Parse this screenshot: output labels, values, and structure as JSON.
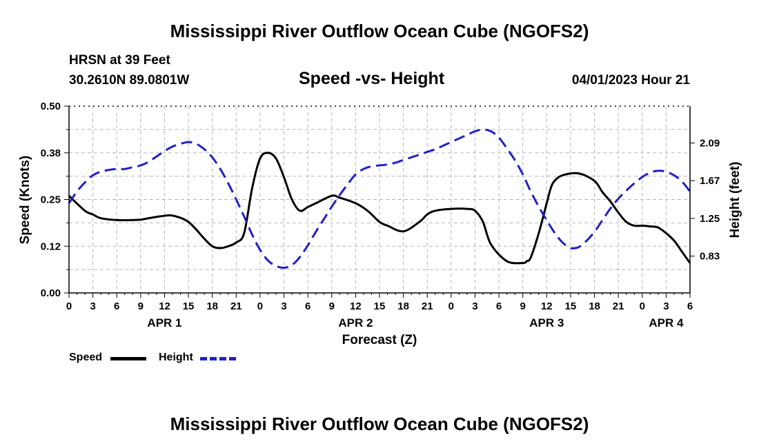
{
  "page": {
    "title_top": "Mississippi River Outflow Ocean Cube (NGOFS2)",
    "title_bottom": "Mississippi River Outflow Ocean Cube (NGOFS2)",
    "station": "HRSN at 39 Feet",
    "coords": "30.2610N  89.0801W",
    "subtitle": "Speed -vs- Height",
    "datetime": "04/01/2023 Hour 21"
  },
  "legend": {
    "speed_label": "Speed",
    "height_label": "Height"
  },
  "colors": {
    "speed": "#000000",
    "height": "#1f1fcc",
    "grid": "#b5b5b5"
  },
  "chart_data": {
    "type": "line",
    "xlabel": "Forecast (Z)",
    "ylabel_left": "Speed (Knots)",
    "ylabel_right": "Height (feet)",
    "x_range_hours": [
      0,
      78
    ],
    "x_tick_labels": [
      "0",
      "3",
      "6",
      "9",
      "12",
      "15",
      "18",
      "21",
      "0",
      "3",
      "6",
      "9",
      "12",
      "15",
      "18",
      "21",
      "0",
      "3",
      "6",
      "9",
      "12",
      "15",
      "18",
      "21",
      "0",
      "3",
      "6"
    ],
    "day_labels": [
      {
        "label": "APR 1",
        "hour": 12
      },
      {
        "label": "APR 2",
        "hour": 36
      },
      {
        "label": "APR 3",
        "hour": 60
      },
      {
        "label": "APR 4",
        "hour": 75
      }
    ],
    "y_left": {
      "range": [
        0,
        0.5
      ],
      "ticks": [
        "0.00",
        "0.12",
        "0.25",
        "0.38",
        "0.50"
      ],
      "tick_values": [
        0,
        0.125,
        0.25,
        0.375,
        0.5
      ]
    },
    "y_right": {
      "range": [
        0.42,
        2.5
      ],
      "ticks": [
        "0.83",
        "1.25",
        "1.67",
        "2.09"
      ],
      "tick_values": [
        0.83,
        1.25,
        1.67,
        2.09
      ]
    },
    "series": [
      {
        "name": "Speed",
        "axis": "left",
        "style": "solid",
        "x": [
          0,
          2,
          3,
          4,
          6,
          8,
          9,
          10,
          11.5,
          13,
          15,
          17,
          18,
          19,
          20,
          21,
          22,
          23,
          24,
          25,
          26,
          27,
          28,
          29,
          30,
          31,
          33,
          34,
          36,
          37.5,
          39,
          40,
          42,
          44,
          45,
          46,
          48,
          50,
          51,
          52,
          53,
          55,
          57,
          57.5,
          58,
          59,
          60,
          60.5,
          61,
          62,
          64,
          66,
          67,
          68,
          69,
          70,
          71,
          72,
          73,
          74,
          75,
          76,
          77,
          78
        ],
        "y": [
          0.26,
          0.22,
          0.21,
          0.2,
          0.195,
          0.195,
          0.196,
          0.2,
          0.205,
          0.207,
          0.19,
          0.145,
          0.125,
          0.12,
          0.125,
          0.135,
          0.16,
          0.28,
          0.36,
          0.375,
          0.36,
          0.31,
          0.25,
          0.22,
          0.23,
          0.24,
          0.26,
          0.255,
          0.24,
          0.22,
          0.19,
          0.18,
          0.165,
          0.19,
          0.21,
          0.22,
          0.225,
          0.225,
          0.22,
          0.19,
          0.13,
          0.085,
          0.08,
          0.085,
          0.095,
          0.16,
          0.24,
          0.28,
          0.3,
          0.315,
          0.32,
          0.3,
          0.27,
          0.245,
          0.215,
          0.19,
          0.18,
          0.18,
          0.178,
          0.175,
          0.16,
          0.14,
          0.11,
          0.08
        ]
      },
      {
        "name": "Height",
        "axis": "right",
        "style": "dashed",
        "x": [
          0,
          1,
          2,
          3,
          4,
          5,
          6,
          7,
          8,
          9,
          10,
          11,
          12,
          13,
          14,
          15,
          16,
          17,
          18,
          19,
          20,
          21,
          22,
          23,
          24,
          25,
          26,
          27,
          28,
          29,
          30,
          31,
          32,
          33,
          34,
          35,
          36,
          37,
          38,
          39,
          40,
          41,
          42,
          43,
          44,
          45,
          46,
          47,
          48,
          49,
          50,
          51,
          52,
          53,
          54,
          55,
          56,
          57,
          58,
          59,
          60,
          61,
          62,
          63,
          64,
          65,
          66,
          67,
          68,
          69,
          70,
          71,
          72,
          73,
          74,
          75,
          76,
          77,
          78
        ],
        "y": [
          1.42,
          1.55,
          1.65,
          1.73,
          1.77,
          1.79,
          1.8,
          1.8,
          1.82,
          1.84,
          1.88,
          1.94,
          2.0,
          2.05,
          2.08,
          2.1,
          2.08,
          2.02,
          1.93,
          1.8,
          1.64,
          1.46,
          1.27,
          1.07,
          0.9,
          0.78,
          0.72,
          0.7,
          0.73,
          0.82,
          0.95,
          1.1,
          1.24,
          1.38,
          1.51,
          1.63,
          1.74,
          1.8,
          1.83,
          1.84,
          1.85,
          1.87,
          1.9,
          1.93,
          1.96,
          1.99,
          2.02,
          2.06,
          2.1,
          2.14,
          2.18,
          2.22,
          2.24,
          2.22,
          2.15,
          2.03,
          1.9,
          1.74,
          1.55,
          1.38,
          1.23,
          1.09,
          0.98,
          0.92,
          0.93,
          1.0,
          1.1,
          1.23,
          1.36,
          1.47,
          1.56,
          1.64,
          1.71,
          1.76,
          1.78,
          1.77,
          1.73,
          1.66,
          1.55
        ]
      }
    ]
  }
}
